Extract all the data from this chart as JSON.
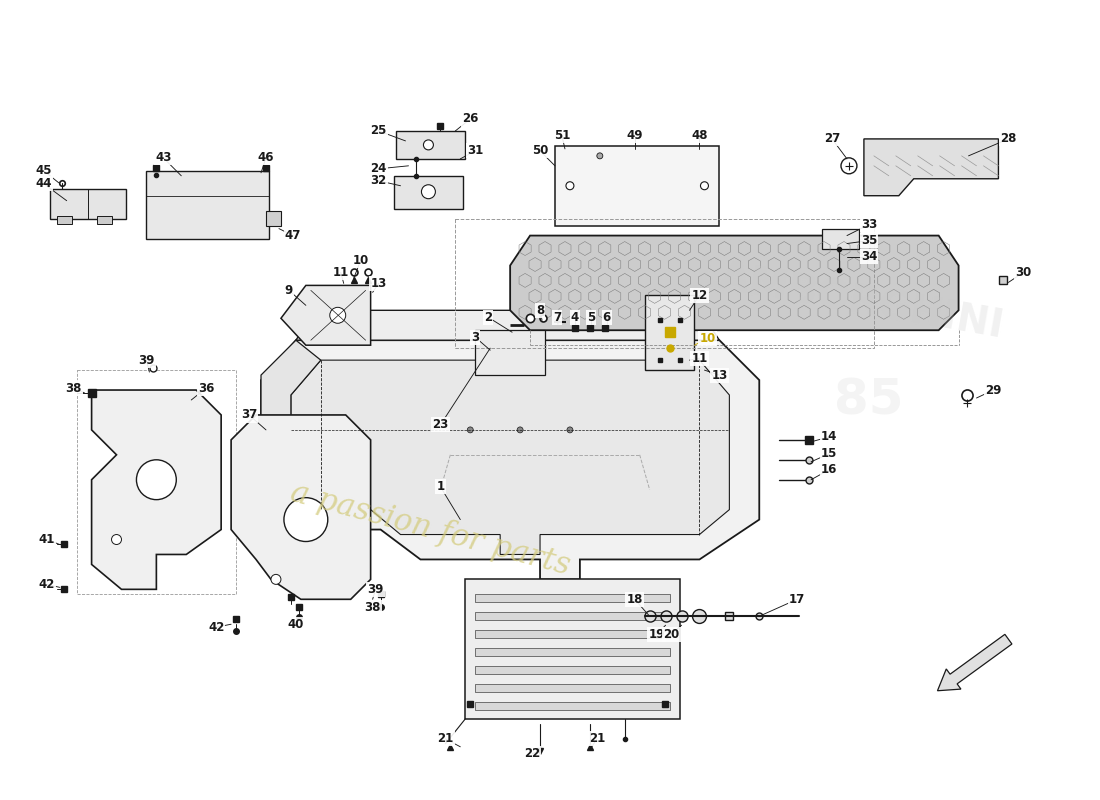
{
  "bg_color": "#ffffff",
  "line_color": "#1a1a1a",
  "watermark_color": "#d4cc80",
  "watermark_text": "a passion for parts",
  "figsize": [
    11.0,
    8.0
  ],
  "dpi": 100,
  "label_fontsize": 8.5,
  "label_bold": true
}
